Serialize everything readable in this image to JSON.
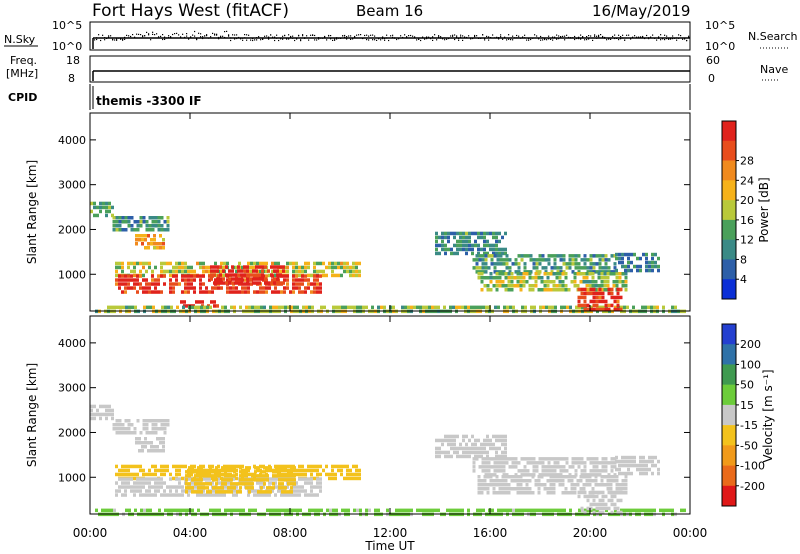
{
  "header": {
    "title": "Fort Hays West (fitACF)",
    "beam": "Beam 16",
    "date": "16/May/2019"
  },
  "strip_nsky": {
    "left_label": "N.Sky",
    "right_label": "N.Search",
    "tick_top": "10^5",
    "tick_bottom": "10^0",
    "right_tick_top": "10^5",
    "right_tick_bottom": "10^0"
  },
  "strip_freq": {
    "left_label_line1": "Freq.",
    "left_label_line2": "[MHz]",
    "tick_top": "18",
    "tick_bottom": "8",
    "right_label": "Nave",
    "right_tick_top": "60",
    "right_tick_bottom": "0"
  },
  "strip_cpid": {
    "left_label": "CPID",
    "program": "themis -3300 IF"
  },
  "colors": {
    "power_scale": [
      "#0b2fd6",
      "#2d5fa8",
      "#3a8a86",
      "#4aa05a",
      "#b9c93a",
      "#f6b21a",
      "#f08a1e",
      "#e84d1c",
      "#e0221c"
    ],
    "velocity_scale": [
      "#2440d0",
      "#2f72a8",
      "#3f9a50",
      "#6ccc3a",
      "#c8c8c8",
      "#f3c21c",
      "#f19a1a",
      "#ea6a1a",
      "#e01818"
    ]
  },
  "chart_data": [
    {
      "type": "heatmap",
      "name": "power-panel",
      "ylabel": "Slant Range [km]",
      "xlabel": "Time UT",
      "x_ticks": [
        "00:00",
        "04:00",
        "08:00",
        "12:00",
        "16:00",
        "20:00",
        "00:00"
      ],
      "y_ticks": [
        "1000",
        "2000",
        "3000",
        "4000"
      ],
      "xlim": [
        0,
        24
      ],
      "ylim": [
        180,
        4600
      ],
      "colorbar": {
        "label": "Power [dB]",
        "ticks": [
          "4",
          "8",
          "12",
          "16",
          "20",
          "24",
          "28"
        ],
        "range": [
          0,
          30
        ]
      },
      "regions": [
        {
          "t0": 0.0,
          "t1": 0.9,
          "r0": 2330,
          "r1": 2620,
          "value": 12
        },
        {
          "t0": 0.9,
          "t1": 3.1,
          "r0": 1950,
          "r1": 2300,
          "value": 10
        },
        {
          "t0": 1.8,
          "t1": 3.0,
          "r0": 1550,
          "r1": 1900,
          "value": 20
        },
        {
          "t0": 1.0,
          "t1": 10.8,
          "r0": 1000,
          "r1": 1280,
          "value": 16
        },
        {
          "t0": 1.0,
          "t1": 9.2,
          "r0": 560,
          "r1": 1000,
          "value": 27
        },
        {
          "t0": 4.8,
          "t1": 7.8,
          "r0": 800,
          "r1": 1200,
          "value": 29
        },
        {
          "t0": 3.6,
          "t1": 5.1,
          "r0": 280,
          "r1": 420,
          "value": 29
        },
        {
          "t0": 0.2,
          "t1": 23.8,
          "r0": 190,
          "r1": 300,
          "value": 14
        },
        {
          "t0": 13.8,
          "t1": 16.6,
          "r0": 1450,
          "r1": 1950,
          "value": 9
        },
        {
          "t0": 15.3,
          "t1": 21.0,
          "r0": 1050,
          "r1": 1450,
          "value": 10
        },
        {
          "t0": 15.5,
          "t1": 21.5,
          "r0": 650,
          "r1": 1050,
          "value": 14
        },
        {
          "t0": 19.5,
          "t1": 21.3,
          "r0": 250,
          "r1": 700,
          "value": 27
        },
        {
          "t0": 21.0,
          "t1": 22.8,
          "r0": 1100,
          "r1": 1480,
          "value": 8
        }
      ]
    },
    {
      "type": "heatmap",
      "name": "velocity-panel",
      "ylabel": "Slant Range [km]",
      "xlabel": "Time UT",
      "x_ticks": [
        "00:00",
        "04:00",
        "08:00",
        "12:00",
        "16:00",
        "20:00",
        "00:00"
      ],
      "y_ticks": [
        "1000",
        "2000",
        "3000",
        "4000"
      ],
      "xlim": [
        0,
        24
      ],
      "ylim": [
        180,
        4600
      ],
      "colorbar": {
        "label": "Velocity [m s⁻¹]",
        "ticks": [
          "200",
          "100",
          "50",
          "15",
          "-15",
          "-50",
          "-100",
          "-200"
        ],
        "range": [
          -250,
          250
        ]
      },
      "regions": [
        {
          "t0": 0.0,
          "t1": 0.9,
          "r0": 2330,
          "r1": 2620,
          "value": 0
        },
        {
          "t0": 0.9,
          "t1": 3.1,
          "r0": 1950,
          "r1": 2300,
          "value": 0
        },
        {
          "t0": 1.8,
          "t1": 3.0,
          "r0": 1550,
          "r1": 1900,
          "value": 0
        },
        {
          "t0": 1.0,
          "t1": 10.8,
          "r0": 1000,
          "r1": 1280,
          "value": -60
        },
        {
          "t0": 1.0,
          "t1": 9.2,
          "r0": 560,
          "r1": 1000,
          "value": 0
        },
        {
          "t0": 3.8,
          "t1": 8.2,
          "r0": 650,
          "r1": 1250,
          "value": -55
        },
        {
          "t0": 0.2,
          "t1": 23.8,
          "r0": 190,
          "r1": 300,
          "value": 40
        },
        {
          "t0": 13.8,
          "t1": 16.6,
          "r0": 1450,
          "r1": 1950,
          "value": 0
        },
        {
          "t0": 15.3,
          "t1": 21.0,
          "r0": 1050,
          "r1": 1450,
          "value": 0
        },
        {
          "t0": 15.5,
          "t1": 21.5,
          "r0": 650,
          "r1": 1050,
          "value": 0
        },
        {
          "t0": 19.5,
          "t1": 21.3,
          "r0": 250,
          "r1": 700,
          "value": 0
        },
        {
          "t0": 21.0,
          "t1": 22.8,
          "r0": 1100,
          "r1": 1480,
          "value": 0
        }
      ]
    }
  ]
}
